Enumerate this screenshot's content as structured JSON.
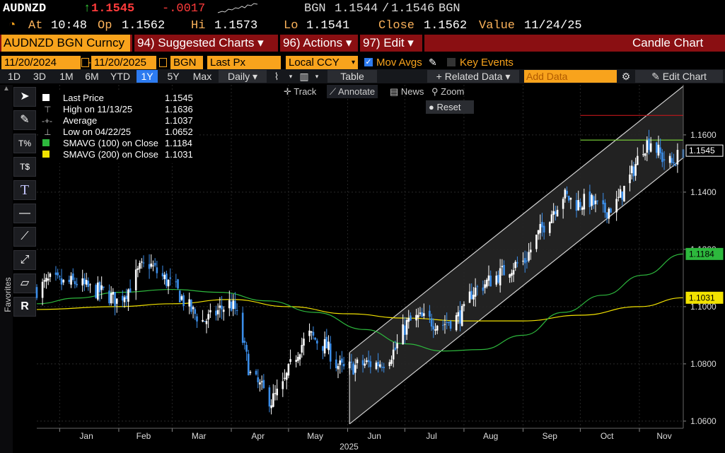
{
  "quote": {
    "ticker": "AUDNZD",
    "arrow": "↑",
    "last": "1.1545",
    "change": "-.0017",
    "bidask_src": "BGN",
    "bid": "1.1544",
    "sep": "/",
    "ask": "1.1546",
    "bidask_src2": "BGN"
  },
  "ohlc": {
    "at_label": "At",
    "time": "10:48",
    "op_label": "Op",
    "op": "1.1562",
    "hi_label": "Hi",
    "hi": "1.1573",
    "lo_label": "Lo",
    "lo": "1.1541",
    "close_label": "Close",
    "close": "1.1562",
    "value_label": "Value",
    "value_date": "11/24/25"
  },
  "menu": {
    "security": "AUDNZD BGN Curncy",
    "suggested": "94) Suggested Charts ▾",
    "actions": "96) Actions ▾",
    "edit": "97) Edit ▾",
    "title": "Candle Chart"
  },
  "options": {
    "start_date": "11/20/2024",
    "end_date": "11/20/2025",
    "source": "BGN",
    "field": "Last Px",
    "currency": "Local CCY",
    "mov_avgs": "Mov Avgs",
    "key_events": "Key Events"
  },
  "ranges": {
    "items": [
      "1D",
      "3D",
      "1M",
      "6M",
      "YTD",
      "1Y",
      "5Y",
      "Max"
    ],
    "selected": "1Y",
    "period": "Daily ▾",
    "table": "Table",
    "related": "+ Related Data ▾",
    "add_placeholder": "Add Data",
    "edit_chart": "Edit Chart"
  },
  "chart_controls": {
    "track": "Track",
    "annotate": "Annotate",
    "news": "News",
    "zoom": "Zoom",
    "reset": "Reset"
  },
  "favorites_label": "Favorites",
  "legend": [
    {
      "label": "Last Price",
      "value": "1.1545",
      "color": "#ffffff"
    },
    {
      "label": "High on 11/13/25",
      "value": "1.1636",
      "color": "#bbbbbb"
    },
    {
      "label": "Average",
      "value": "1.1037",
      "color": "#bbbbbb"
    },
    {
      "label": "Low on 04/22/25",
      "value": "1.0652",
      "color": "#bbbbbb"
    },
    {
      "label": "SMAVG (100)  on Close",
      "value": "1.1184",
      "color": "#2db83d"
    },
    {
      "label": "SMAVG (200)  on Close",
      "value": "1.1031",
      "color": "#f2e200"
    }
  ],
  "colors": {
    "up": "#ffffff",
    "down": "#3b8eea",
    "sma100": "#2db83d",
    "sma200": "#f2e200",
    "high_line": "#c0161b",
    "open_line": "#7fdc3a",
    "channel": "#d0d0d0",
    "header_orange": "#f8a31c",
    "menu_red": "#8a0f12"
  },
  "chart_data": {
    "type": "candlestick",
    "title": "",
    "xlabel": "",
    "ylabel": "",
    "x_tick_labels": [
      "Jan",
      "Feb",
      "Mar",
      "Apr",
      "May",
      "Jun",
      "Jul",
      "Aug",
      "Sep",
      "Oct",
      "Nov"
    ],
    "x_year_label": "2025",
    "y_tick_labels": [
      "1.0600",
      "1.0800",
      "1.1000",
      "1.1200",
      "1.1400",
      "1.1600"
    ],
    "ylim": [
      1.0575,
      1.1775
    ],
    "xlim": [
      "2024-12-20",
      "2025-11-24"
    ],
    "grid": true,
    "price_labels": [
      {
        "label": "1.1545",
        "value": 1.1545,
        "style": "last"
      },
      {
        "label": "1.1184",
        "value": 1.1184,
        "style": "sma100"
      },
      {
        "label": "1.1031",
        "value": 1.1031,
        "style": "sma200"
      }
    ],
    "reference_lines": [
      {
        "name": "high",
        "value": 1.1668,
        "from": "2025-10-01"
      },
      {
        "name": "open",
        "value": 1.1582,
        "from": "2025-10-01"
      }
    ],
    "channel": {
      "lower": [
        [
          "2025-06-02",
          1.059
        ],
        [
          "2025-11-24",
          1.152
        ]
      ],
      "upper": [
        [
          "2025-06-02",
          1.084
        ],
        [
          "2025-11-24",
          1.177
        ]
      ]
    },
    "close_path": [
      [
        "2024-12-20",
        1.106
      ],
      [
        "2024-12-27",
        1.109
      ],
      [
        "2025-01-03",
        1.108
      ],
      [
        "2025-01-10",
        1.1085
      ],
      [
        "2025-01-17",
        1.106
      ],
      [
        "2025-01-24",
        1.105
      ],
      [
        "2025-01-31",
        1.102
      ],
      [
        "2025-02-06",
        1.106
      ],
      [
        "2025-02-12",
        1.113
      ],
      [
        "2025-02-17",
        1.115
      ],
      [
        "2025-02-21",
        1.112
      ],
      [
        "2025-02-26",
        1.109
      ],
      [
        "2025-03-03",
        1.106
      ],
      [
        "2025-03-07",
        1.102
      ],
      [
        "2025-03-12",
        1.098
      ],
      [
        "2025-03-17",
        1.095
      ],
      [
        "2025-03-21",
        1.096
      ],
      [
        "2025-03-26",
        1.099
      ],
      [
        "2025-03-31",
        1.101
      ],
      [
        "2025-04-03",
        1.099
      ],
      [
        "2025-04-07",
        1.088
      ],
      [
        "2025-04-11",
        1.076
      ],
      [
        "2025-04-16",
        1.072
      ],
      [
        "2025-04-22",
        1.067
      ],
      [
        "2025-04-28",
        1.072
      ],
      [
        "2025-05-02",
        1.079
      ],
      [
        "2025-05-07",
        1.086
      ],
      [
        "2025-05-12",
        1.09
      ],
      [
        "2025-05-16",
        1.088
      ],
      [
        "2025-05-21",
        1.086
      ],
      [
        "2025-05-26",
        1.08
      ],
      [
        "2025-05-30",
        1.078
      ],
      [
        "2025-06-04",
        1.079
      ],
      [
        "2025-06-10",
        1.08
      ],
      [
        "2025-06-16",
        1.08
      ],
      [
        "2025-06-20",
        1.081
      ],
      [
        "2025-06-26",
        1.085
      ],
      [
        "2025-07-02",
        1.094
      ],
      [
        "2025-07-08",
        1.096
      ],
      [
        "2025-07-14",
        1.095
      ],
      [
        "2025-07-21",
        1.094
      ],
      [
        "2025-07-28",
        1.096
      ],
      [
        "2025-08-01",
        1.098
      ],
      [
        "2025-08-05",
        1.105
      ],
      [
        "2025-08-12",
        1.108
      ],
      [
        "2025-08-19",
        1.111
      ],
      [
        "2025-08-26",
        1.114
      ],
      [
        "2025-09-02",
        1.116
      ],
      [
        "2025-09-08",
        1.124
      ],
      [
        "2025-09-15",
        1.132
      ],
      [
        "2025-09-22",
        1.139
      ],
      [
        "2025-09-29",
        1.136
      ],
      [
        "2025-10-06",
        1.137
      ],
      [
        "2025-10-13",
        1.133
      ],
      [
        "2025-10-20",
        1.136
      ],
      [
        "2025-10-27",
        1.145
      ],
      [
        "2025-11-03",
        1.156
      ],
      [
        "2025-11-07",
        1.158
      ],
      [
        "2025-11-13",
        1.152
      ],
      [
        "2025-11-18",
        1.15
      ],
      [
        "2025-11-24",
        1.1545
      ]
    ],
    "sma100": [
      [
        "2024-12-20",
        1.101
      ],
      [
        "2025-01-10",
        1.103
      ],
      [
        "2025-02-01",
        1.105
      ],
      [
        "2025-03-01",
        1.106
      ],
      [
        "2025-03-26",
        1.105
      ],
      [
        "2025-04-20",
        1.102
      ],
      [
        "2025-05-15",
        1.098
      ],
      [
        "2025-06-10",
        1.092
      ],
      [
        "2025-07-01",
        1.087
      ],
      [
        "2025-07-21",
        1.0845
      ],
      [
        "2025-08-10",
        1.085
      ],
      [
        "2025-09-01",
        1.09
      ],
      [
        "2025-09-22",
        1.098
      ],
      [
        "2025-10-13",
        1.104
      ],
      [
        "2025-11-03",
        1.111
      ],
      [
        "2025-11-24",
        1.1184
      ]
    ],
    "sma200": [
      [
        "2024-12-20",
        1.099
      ],
      [
        "2025-01-31",
        1.1
      ],
      [
        "2025-03-01",
        1.101
      ],
      [
        "2025-04-01",
        1.1025
      ],
      [
        "2025-05-01",
        1.1
      ],
      [
        "2025-06-01",
        1.0975
      ],
      [
        "2025-07-01",
        1.096
      ],
      [
        "2025-08-01",
        1.095
      ],
      [
        "2025-09-01",
        1.095
      ],
      [
        "2025-10-01",
        1.097
      ],
      [
        "2025-11-01",
        1.1
      ],
      [
        "2025-11-24",
        1.1031
      ]
    ]
  }
}
